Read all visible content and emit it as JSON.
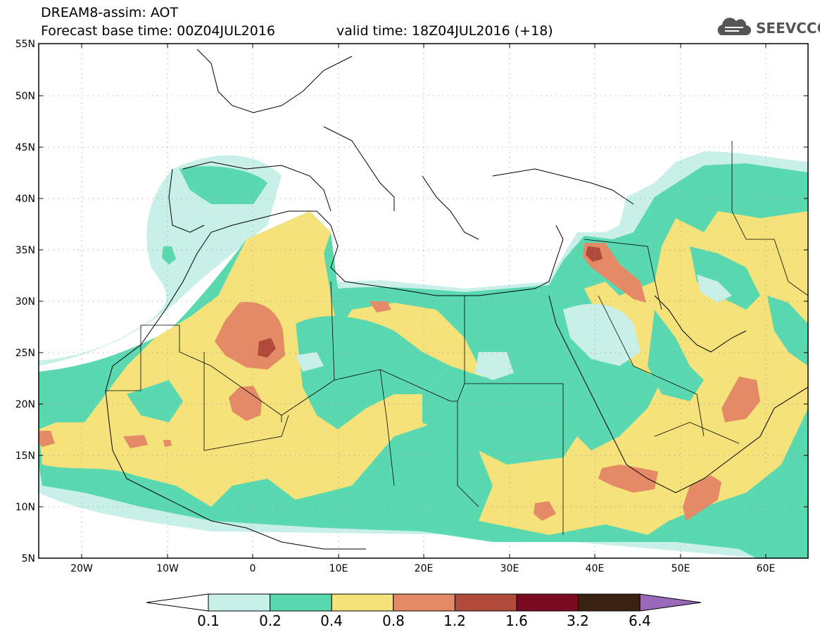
{
  "header": {
    "title": "DREAM8-assim: AOT",
    "forecast_base": "Forecast base time: 00Z04JUL2016",
    "valid_time": "valid time: 18Z04JUL2016 (+18)",
    "logo_text": "SEEVCCC"
  },
  "map": {
    "lat_labels": [
      "55N",
      "50N",
      "45N",
      "40N",
      "35N",
      "30N",
      "25N",
      "20N",
      "15N",
      "10N",
      "5N"
    ],
    "lon_labels": [
      "20W",
      "10W",
      "0",
      "10E",
      "20E",
      "30E",
      "40E",
      "50E",
      "60E"
    ]
  },
  "colorbar": {
    "levels": [
      "0.1",
      "0.2",
      "0.4",
      "0.8",
      "1.2",
      "1.6",
      "3.2",
      "6.4"
    ],
    "colors": [
      "#ffffff",
      "#c8f0e8",
      "#5ad8b0",
      "#f5e27a",
      "#e58a66",
      "#b04a3a",
      "#7a0a22",
      "#3a2212",
      "#9a6ab8"
    ]
  }
}
